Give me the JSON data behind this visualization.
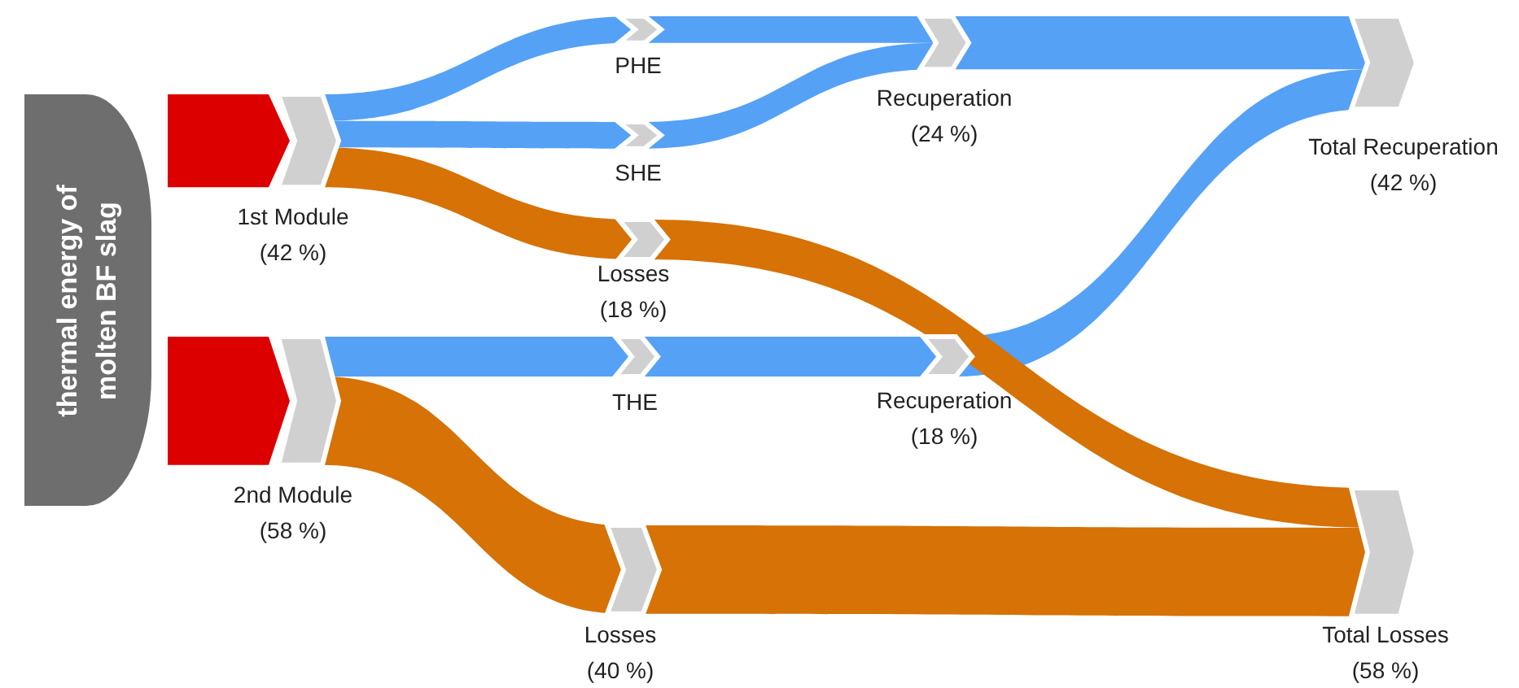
{
  "chart_data": {
    "type": "other",
    "title": "thermal energy of molten BF slag",
    "categories": [
      "1st Module",
      "2nd Module",
      "PHE",
      "SHE",
      "THE",
      "Recuperation",
      "Losses",
      "Recuperation",
      "Losses",
      "Total Recuperation",
      "Total Losses"
    ],
    "values": [
      42,
      58,
      null,
      null,
      null,
      24,
      18,
      18,
      40,
      42,
      58
    ],
    "value_labels": [
      "(42 %)",
      "(58 %)",
      null,
      null,
      null,
      "(24 %)",
      "(18 %)",
      "(18 %)",
      "(40 %)",
      "(42 %)",
      "(58 %)"
    ],
    "colors": [
      "#dd0000",
      "#dd0000",
      "#55a1f5",
      "#55a1f5",
      "#55a1f5",
      "#55a1f5",
      "#d67206",
      "#55a1f5",
      "#d67206",
      "#55a1f5",
      "#d67206"
    ]
  }
}
